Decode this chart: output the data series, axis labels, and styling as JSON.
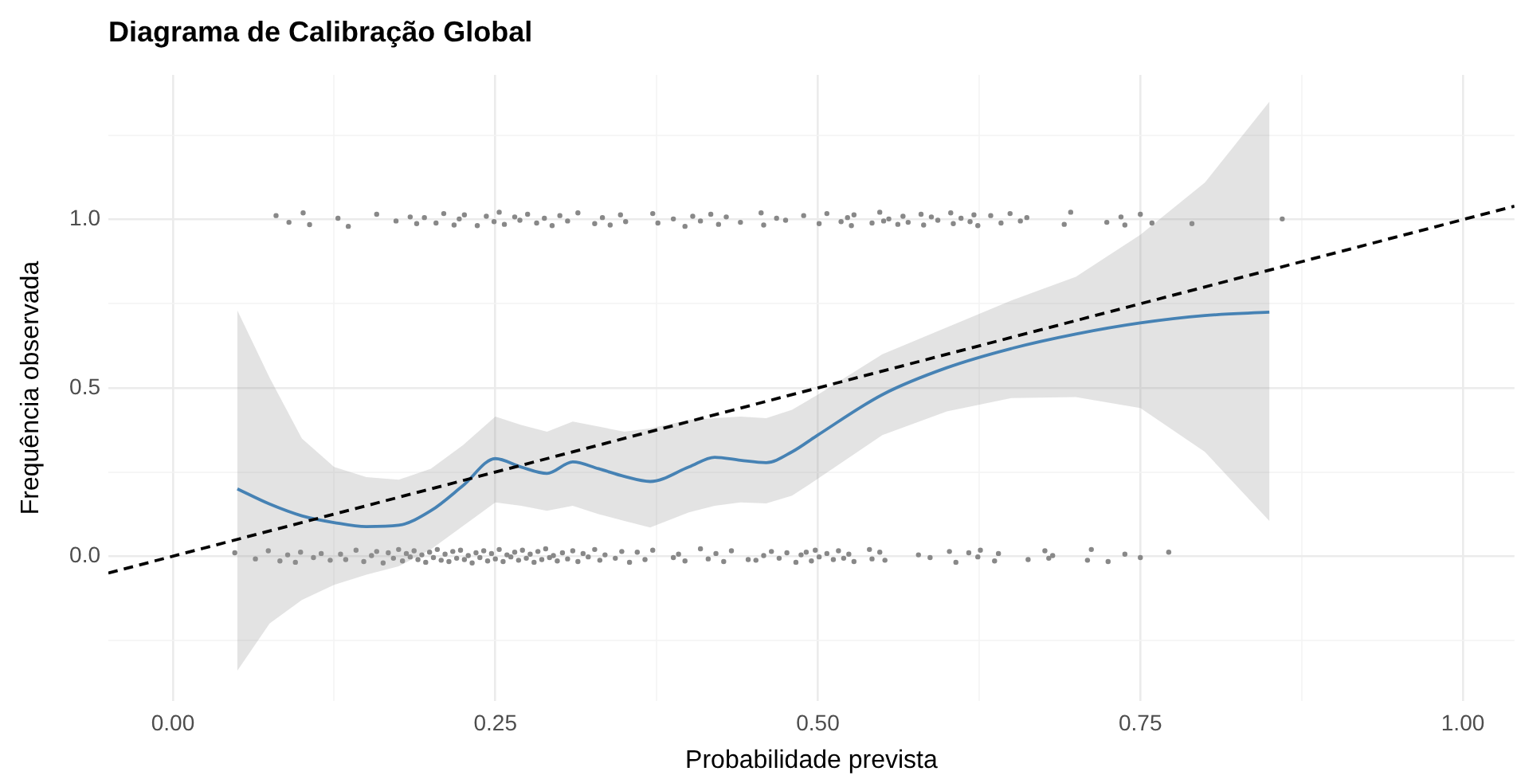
{
  "chart_data": {
    "type": "scatter",
    "title": "Diagrama de Calibração Global",
    "xlabel": "Probabilidade prevista",
    "ylabel": "Frequência observada",
    "xlim": [
      -0.05,
      1.04
    ],
    "ylim": [
      -0.43,
      1.43
    ],
    "xticks": [
      {
        "value": 0,
        "label": "0.00"
      },
      {
        "value": 0.125,
        "label": null
      },
      {
        "value": 0.25,
        "label": "0.25"
      },
      {
        "value": 0.375,
        "label": null
      },
      {
        "value": 0.5,
        "label": "0.50"
      },
      {
        "value": 0.625,
        "label": null
      },
      {
        "value": 0.75,
        "label": "0.75"
      },
      {
        "value": 0.875,
        "label": null
      },
      {
        "value": 1,
        "label": "1.00"
      }
    ],
    "yticks": [
      {
        "value": -0.25,
        "label": null
      },
      {
        "value": 0,
        "label": "0.0"
      },
      {
        "value": 0.25,
        "label": null
      },
      {
        "value": 0.5,
        "label": "0.5"
      },
      {
        "value": 0.75,
        "label": null
      },
      {
        "value": 1,
        "label": "1.0"
      },
      {
        "value": 1.25,
        "label": null
      }
    ],
    "grid": true,
    "series": [
      {
        "color": "#888888",
        "marker": "circle",
        "x": [
          0.08,
          0.09,
          0.101,
          0.106,
          0.128,
          0.136,
          0.158,
          0.173,
          0.184,
          0.189,
          0.195,
          0.204,
          0.21,
          0.218,
          0.222,
          0.226,
          0.236,
          0.243,
          0.249,
          0.253,
          0.257,
          0.265,
          0.269,
          0.275,
          0.282,
          0.288,
          0.294,
          0.3,
          0.306,
          0.314,
          0.327,
          0.333,
          0.339,
          0.347,
          0.351,
          0.372,
          0.376,
          0.388,
          0.397,
          0.403,
          0.409,
          0.417,
          0.423,
          0.429,
          0.44,
          0.456,
          0.458,
          0.468,
          0.475,
          0.489,
          0.501,
          0.507,
          0.518,
          0.523,
          0.526,
          0.528,
          0.542,
          0.548,
          0.551,
          0.555,
          0.562,
          0.566,
          0.57,
          0.58,
          0.582,
          0.588,
          0.593,
          0.603,
          0.605,
          0.611,
          0.618,
          0.621,
          0.624,
          0.634,
          0.642,
          0.649,
          0.657,
          0.662,
          0.691,
          0.696,
          0.724,
          0.735,
          0.738,
          0.75,
          0.759,
          0.79,
          0.86
        ],
        "values": [
          1.012,
          0.992,
          1.02,
          0.985,
          1.004,
          0.98,
          1.016,
          0.996,
          1.008,
          0.988,
          1.006,
          0.99,
          1.018,
          0.984,
          1.002,
          1.014,
          0.982,
          1.01,
          0.994,
          1.022,
          0.986,
          1.008,
          0.998,
          1.016,
          0.99,
          1.004,
          0.982,
          1.012,
          0.996,
          1.02,
          0.988,
          1.006,
          0.984,
          1.014,
          0.994,
          1.018,
          0.99,
          1.002,
          0.98,
          1.01,
          0.996,
          1.016,
          0.986,
          1.008,
          0.992,
          1.02,
          0.984,
          1.004,
          0.998,
          1.012,
          0.988,
          1.018,
          0.994,
          1.006,
          0.982,
          1.014,
          0.99,
          1.022,
          0.996,
          1.002,
          0.986,
          1.01,
          0.992,
          1.016,
          0.984,
          1.008,
          0.998,
          1.02,
          0.988,
          1.004,
          0.994,
          1.014,
          0.982,
          1.012,
          0.99,
          1.018,
          0.996,
          1.006,
          0.986,
          1.022,
          0.992,
          1.008,
          0.984,
          1.016,
          0.99,
          0.988,
          1.002
        ]
      },
      {
        "color": "#888888",
        "marker": "circle",
        "x": [
          0.048,
          0.064,
          0.074,
          0.083,
          0.089,
          0.095,
          0.099,
          0.109,
          0.115,
          0.122,
          0.13,
          0.134,
          0.142,
          0.148,
          0.154,
          0.158,
          0.163,
          0.167,
          0.171,
          0.175,
          0.178,
          0.181,
          0.184,
          0.187,
          0.19,
          0.193,
          0.196,
          0.199,
          0.202,
          0.205,
          0.208,
          0.211,
          0.214,
          0.217,
          0.22,
          0.223,
          0.226,
          0.229,
          0.232,
          0.235,
          0.238,
          0.241,
          0.244,
          0.247,
          0.25,
          0.253,
          0.256,
          0.259,
          0.262,
          0.265,
          0.268,
          0.271,
          0.274,
          0.277,
          0.28,
          0.283,
          0.286,
          0.289,
          0.292,
          0.295,
          0.298,
          0.302,
          0.306,
          0.31,
          0.314,
          0.318,
          0.322,
          0.327,
          0.331,
          0.335,
          0.343,
          0.348,
          0.354,
          0.36,
          0.366,
          0.372,
          0.388,
          0.392,
          0.397,
          0.409,
          0.415,
          0.421,
          0.427,
          0.433,
          0.446,
          0.452,
          0.458,
          0.464,
          0.47,
          0.476,
          0.483,
          0.487,
          0.491,
          0.495,
          0.498,
          0.501,
          0.507,
          0.512,
          0.516,
          0.52,
          0.524,
          0.528,
          0.54,
          0.542,
          0.548,
          0.552,
          0.578,
          0.587,
          0.602,
          0.607,
          0.617,
          0.624,
          0.626,
          0.637,
          0.64,
          0.663,
          0.676,
          0.679,
          0.682,
          0.709,
          0.712,
          0.725,
          0.738,
          0.75,
          0.772
        ],
        "values": [
          0.01,
          -0.008,
          0.016,
          -0.014,
          0.004,
          -0.018,
          0.012,
          -0.004,
          0.008,
          -0.012,
          0.006,
          -0.01,
          0.018,
          -0.016,
          0.002,
          0.014,
          -0.02,
          0.01,
          -0.006,
          0.02,
          -0.014,
          0.008,
          -0.002,
          0.016,
          -0.01,
          0.004,
          -0.018,
          0.012,
          -0.004,
          0.02,
          -0.012,
          0.006,
          -0.016,
          0.014,
          -0.006,
          0.018,
          -0.01,
          0.002,
          -0.02,
          0.01,
          -0.004,
          0.016,
          -0.014,
          0.008,
          -0.008,
          0.02,
          -0.016,
          0.004,
          -0.002,
          0.012,
          -0.012,
          0.018,
          -0.006,
          0.006,
          -0.018,
          0.014,
          -0.01,
          0.022,
          -0.004,
          0.002,
          -0.014,
          0.01,
          -0.008,
          0.016,
          -0.016,
          0.008,
          -0.002,
          0.02,
          -0.012,
          0.004,
          -0.006,
          0.014,
          -0.018,
          0.012,
          -0.01,
          0.018,
          -0.004,
          0.006,
          -0.014,
          0.022,
          -0.008,
          0.008,
          -0.016,
          0.016,
          -0.01,
          -0.012,
          0.002,
          0.014,
          -0.006,
          0.01,
          -0.018,
          0.004,
          0.012,
          -0.014,
          0.018,
          -0.002,
          0.008,
          -0.01,
          0.016,
          -0.006,
          0.006,
          -0.016,
          0.02,
          -0.008,
          0.012,
          -0.012,
          0.004,
          -0.004,
          0.014,
          -0.018,
          0.01,
          -0.002,
          0.018,
          -0.014,
          0.008,
          -0.01,
          0.016,
          -0.006,
          0.002,
          -0.012,
          0.02,
          -0.016,
          0.006,
          -0.004,
          0.012
        ]
      },
      {
        "type": "line",
        "color": "#4682b4",
        "marker": "none",
        "line_style": "solid",
        "x": [
          0.05,
          0.075,
          0.1,
          0.125,
          0.15,
          0.175,
          0.2,
          0.225,
          0.25,
          0.27,
          0.29,
          0.31,
          0.33,
          0.35,
          0.37,
          0.4,
          0.42,
          0.44,
          0.46,
          0.48,
          0.5,
          0.55,
          0.6,
          0.65,
          0.7,
          0.75,
          0.8,
          0.85
        ],
        "values": [
          0.2,
          0.155,
          0.12,
          0.1,
          0.088,
          0.092,
          0.135,
          0.21,
          0.29,
          0.265,
          0.246,
          0.28,
          0.26,
          0.237,
          0.222,
          0.265,
          0.294,
          0.285,
          0.278,
          0.31,
          0.36,
          0.48,
          0.56,
          0.617,
          0.66,
          0.693,
          0.715,
          0.725
        ],
        "lower": [
          -0.34,
          -0.2,
          -0.13,
          -0.085,
          -0.055,
          -0.03,
          0.02,
          0.09,
          0.16,
          0.15,
          0.135,
          0.15,
          0.125,
          0.105,
          0.085,
          0.13,
          0.15,
          0.16,
          0.157,
          0.18,
          0.23,
          0.36,
          0.43,
          0.47,
          0.473,
          0.44,
          0.31,
          0.105
        ],
        "upper": [
          0.73,
          0.53,
          0.35,
          0.265,
          0.235,
          0.227,
          0.26,
          0.33,
          0.415,
          0.39,
          0.37,
          0.4,
          0.385,
          0.37,
          0.38,
          0.405,
          0.41,
          0.415,
          0.41,
          0.435,
          0.48,
          0.6,
          0.68,
          0.76,
          0.83,
          0.955,
          1.11,
          1.35
        ]
      },
      {
        "type": "line",
        "color": "#000000",
        "marker": "none",
        "line_style": "dashed",
        "x": [
          -0.05,
          1.04
        ],
        "values": [
          -0.05,
          1.04
        ]
      }
    ]
  }
}
